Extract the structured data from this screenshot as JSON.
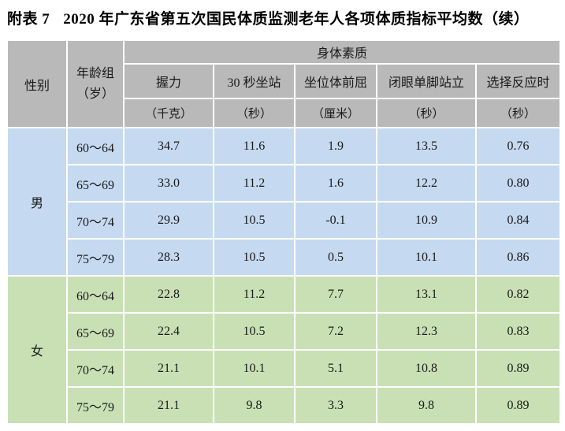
{
  "page": {
    "label": "附表 7",
    "title": "2020 年广东省第五次国民体质监测老年人各项体质指标平均数（续）"
  },
  "table": {
    "header": {
      "gender": "性别",
      "age_group_line1": "年龄组",
      "age_group_line2": "（岁）",
      "group_title": "身体素质",
      "metrics": [
        "握力",
        "30 秒坐站",
        "坐位体前屈",
        "闭眼单脚站立",
        "选择反应时"
      ],
      "units": [
        "（千克）",
        "（秒）",
        "（厘米）",
        "（秒）",
        "（秒）"
      ]
    },
    "sections": [
      {
        "gender": "男",
        "bg_color": "#c5d9f0",
        "rows": [
          {
            "age": "60～64",
            "values": [
              "34.7",
              "11.6",
              "1.9",
              "13.5",
              "0.76"
            ]
          },
          {
            "age": "65～69",
            "values": [
              "33.0",
              "11.2",
              "1.6",
              "12.2",
              "0.80"
            ]
          },
          {
            "age": "70～74",
            "values": [
              "29.9",
              "10.5",
              "-0.1",
              "10.9",
              "0.84"
            ]
          },
          {
            "age": "75～79",
            "values": [
              "28.3",
              "10.5",
              "0.5",
              "10.1",
              "0.86"
            ]
          }
        ]
      },
      {
        "gender": "女",
        "bg_color": "#c9e0b5",
        "rows": [
          {
            "age": "60～64",
            "values": [
              "22.8",
              "11.2",
              "7.7",
              "13.1",
              "0.82"
            ]
          },
          {
            "age": "65～69",
            "values": [
              "22.4",
              "10.5",
              "7.2",
              "12.3",
              "0.83"
            ]
          },
          {
            "age": "70～74",
            "values": [
              "21.1",
              "10.1",
              "5.1",
              "10.8",
              "0.89"
            ]
          },
          {
            "age": "75～79",
            "values": [
              "21.1",
              "9.8",
              "3.3",
              "9.8",
              "0.89"
            ]
          }
        ]
      }
    ]
  },
  "colors": {
    "header_bg": "#b9b9b9",
    "male_bg": "#c5d9f0",
    "female_bg": "#c9e0b5",
    "border": "#ffffff",
    "text": "#1a1a1a"
  }
}
